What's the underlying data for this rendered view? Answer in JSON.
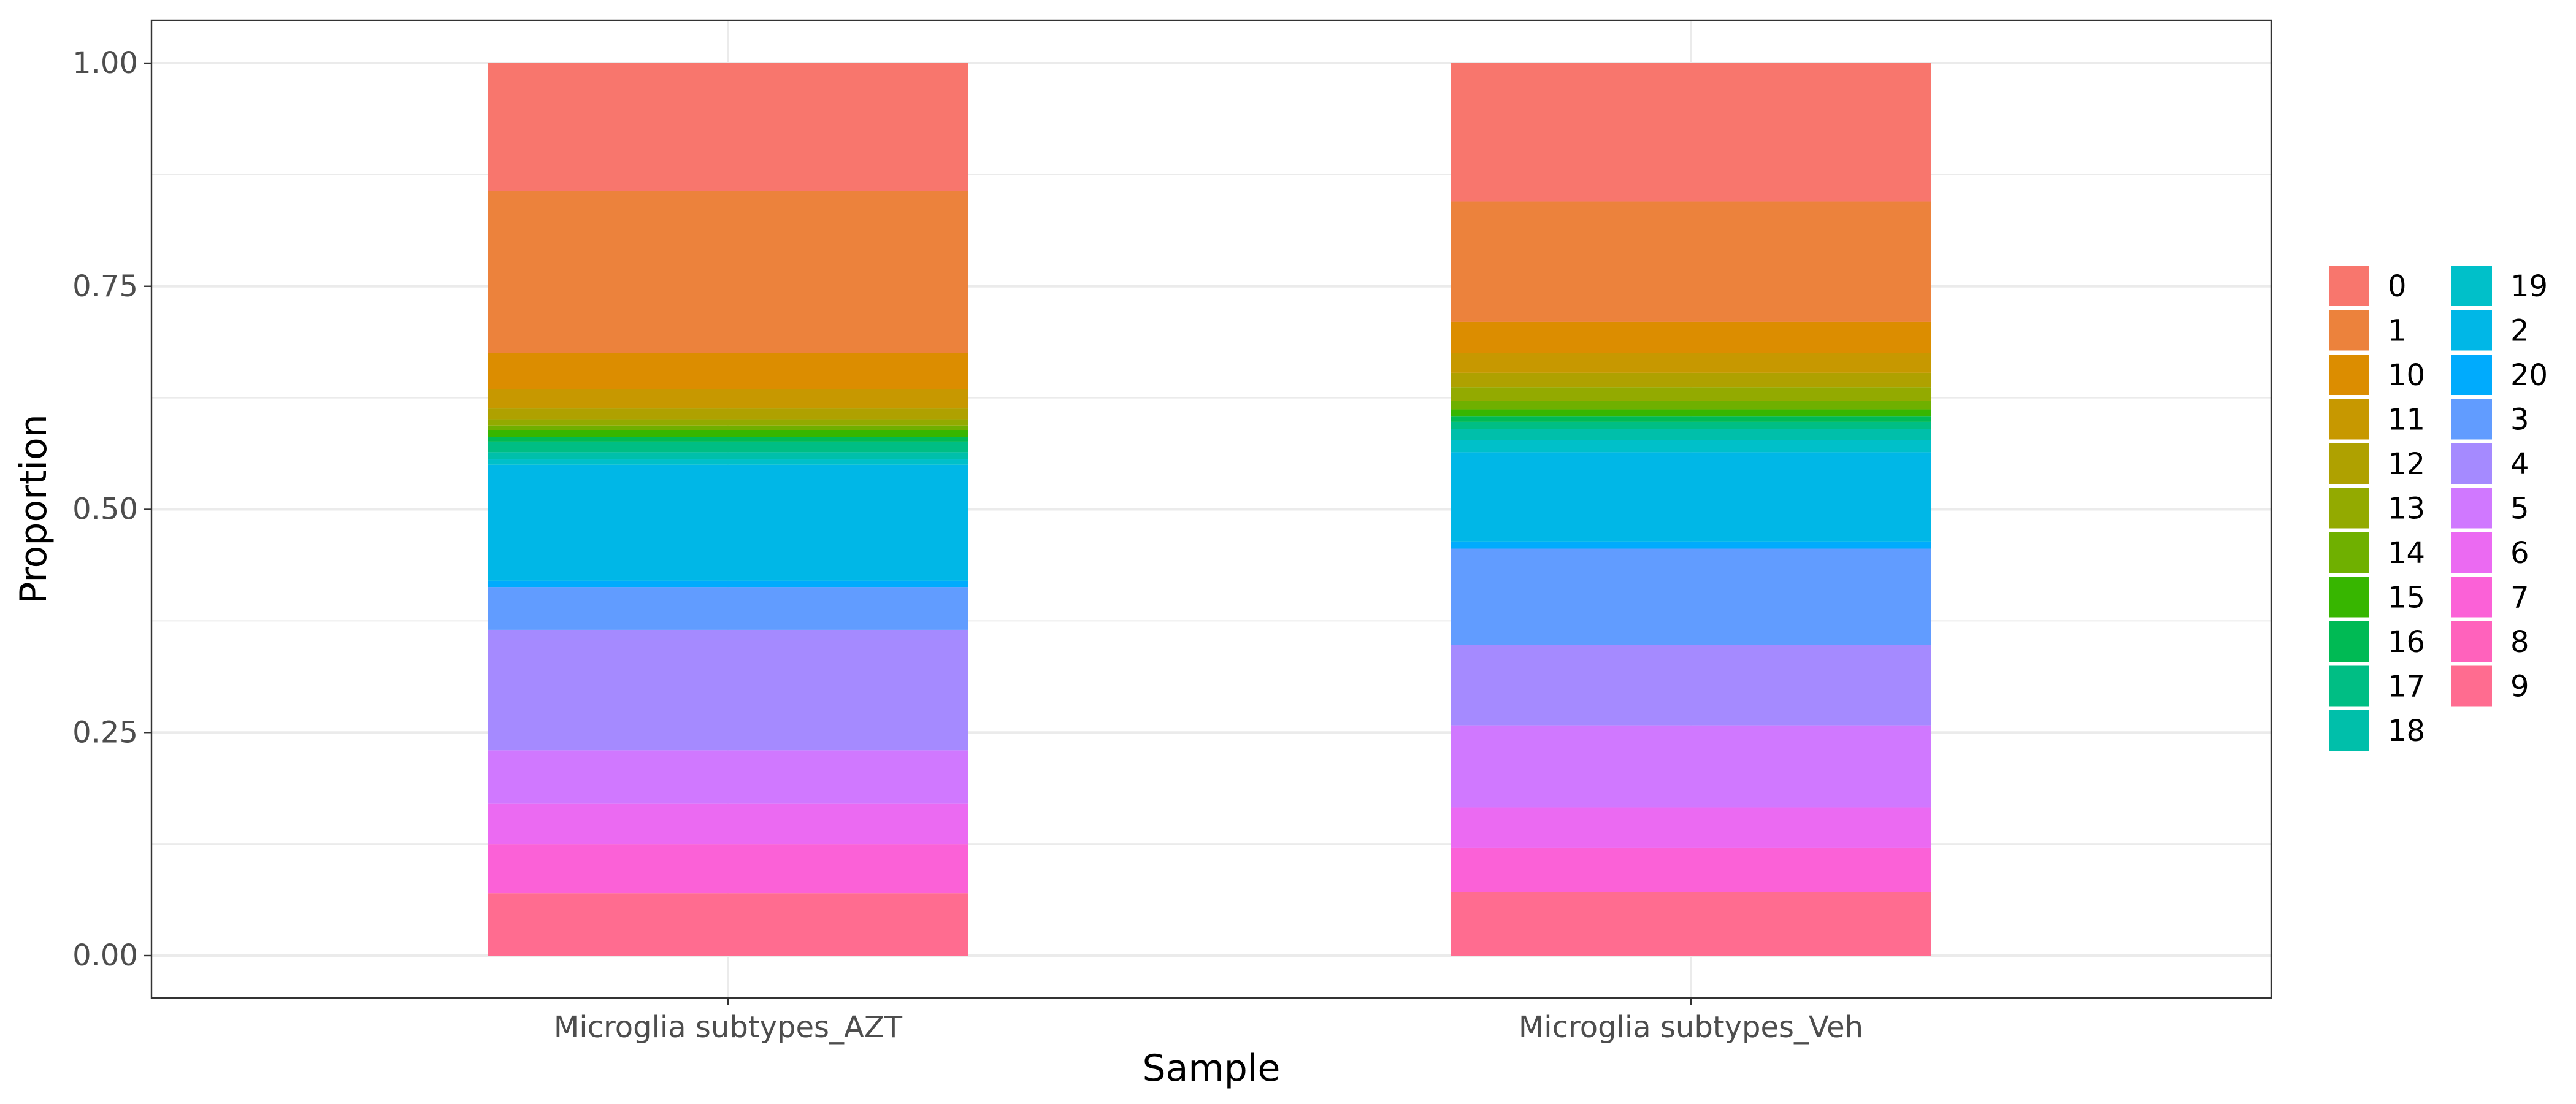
{
  "chart_data": {
    "type": "bar",
    "stacked": true,
    "xlabel": "Sample",
    "ylabel": "Proportion",
    "ylim": [
      0,
      1
    ],
    "y_ticks": [
      "0.00",
      "0.25",
      "0.50",
      "0.75",
      "1.00"
    ],
    "grid": true,
    "legend_position": "right",
    "categories": [
      "Microglia subtypes_AZT",
      "Microglia subtypes_Veh"
    ],
    "stack_order_top_to_bottom": [
      "0",
      "1",
      "10",
      "11",
      "12",
      "13",
      "14",
      "15",
      "16",
      "17",
      "18",
      "19",
      "2",
      "20",
      "3",
      "4",
      "5",
      "6",
      "7",
      "8",
      "9"
    ],
    "series": [
      {
        "name": "0",
        "color": "#F8766D",
        "values": [
          0.143,
          0.155
        ]
      },
      {
        "name": "1",
        "color": "#EC823C",
        "values": [
          0.182,
          0.135
        ]
      },
      {
        "name": "10",
        "color": "#DC8D00",
        "values": [
          0.04,
          0.035
        ]
      },
      {
        "name": "11",
        "color": "#C79800",
        "values": [
          0.022,
          0.022
        ]
      },
      {
        "name": "12",
        "color": "#AFA100",
        "values": [
          0.012,
          0.016
        ]
      },
      {
        "name": "13",
        "color": "#93AA00",
        "values": [
          0.007,
          0.015
        ]
      },
      {
        "name": "14",
        "color": "#6FB000",
        "values": [
          0.005,
          0.01
        ]
      },
      {
        "name": "15",
        "color": "#37B600",
        "values": [
          0.008,
          0.008
        ]
      },
      {
        "name": "16",
        "color": "#00BA54",
        "values": [
          0.005,
          0.006
        ]
      },
      {
        "name": "17",
        "color": "#00BE84",
        "values": [
          0.012,
          0.008
        ]
      },
      {
        "name": "18",
        "color": "#00BFAA",
        "values": [
          0.008,
          0.012
        ]
      },
      {
        "name": "19",
        "color": "#00C0C9",
        "values": [
          0.006,
          0.014
        ]
      },
      {
        "name": "2",
        "color": "#00B7E7",
        "values": [
          0.13,
          0.1
        ]
      },
      {
        "name": "20",
        "color": "#00ABFD",
        "values": [
          0.007,
          0.008
        ]
      },
      {
        "name": "3",
        "color": "#619CFF",
        "values": [
          0.048,
          0.108
        ]
      },
      {
        "name": "4",
        "color": "#A58AFF",
        "values": [
          0.135,
          0.09
        ]
      },
      {
        "name": "5",
        "color": "#D078FF",
        "values": [
          0.06,
          0.092
        ]
      },
      {
        "name": "6",
        "color": "#EB6AF2",
        "values": [
          0.045,
          0.045
        ]
      },
      {
        "name": "7",
        "color": "#FB61D7",
        "values": [
          0.055,
          0.05
        ]
      },
      {
        "name": "8",
        "color": "#FF62BC",
        "values": [
          0.0,
          0.0
        ]
      },
      {
        "name": "9",
        "color": "#FF6C90",
        "values": [
          0.07,
          0.071
        ]
      }
    ]
  }
}
